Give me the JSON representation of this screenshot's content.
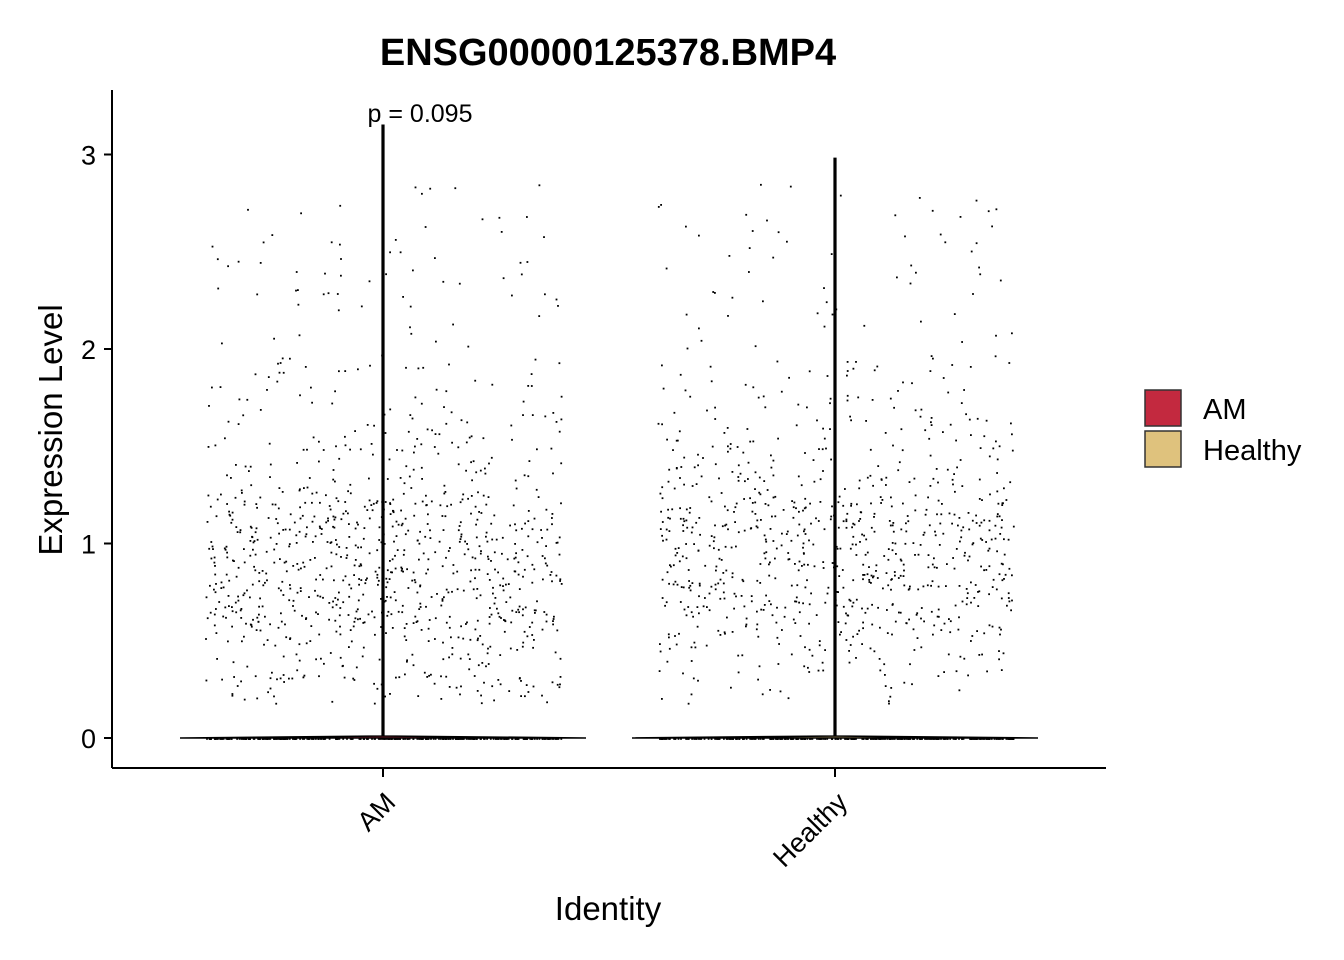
{
  "chart_data": {
    "type": "violin",
    "title": "ENSG00000125378.BMP4",
    "xlabel": "Identity",
    "ylabel": "Expression Level",
    "categories": [
      "AM",
      "Healthy"
    ],
    "y_ticks": [
      "0",
      "1",
      "2",
      "3"
    ],
    "ylim": [
      -0.15,
      3.35
    ],
    "legend_position": "right",
    "legend": [
      {
        "name": "AM",
        "color": "#C3293F"
      },
      {
        "name": "Healthy",
        "color": "#DFC27D"
      }
    ],
    "annotation": "p = 0.095",
    "groups": [
      {
        "name": "AM",
        "max": 3.15,
        "point_count": 1300,
        "zero_count": 300,
        "point_color": "#000000"
      },
      {
        "name": "Healthy",
        "max": 2.98,
        "point_count": 1200,
        "zero_count": 300,
        "point_color": "#000000"
      }
    ],
    "grid": false
  }
}
